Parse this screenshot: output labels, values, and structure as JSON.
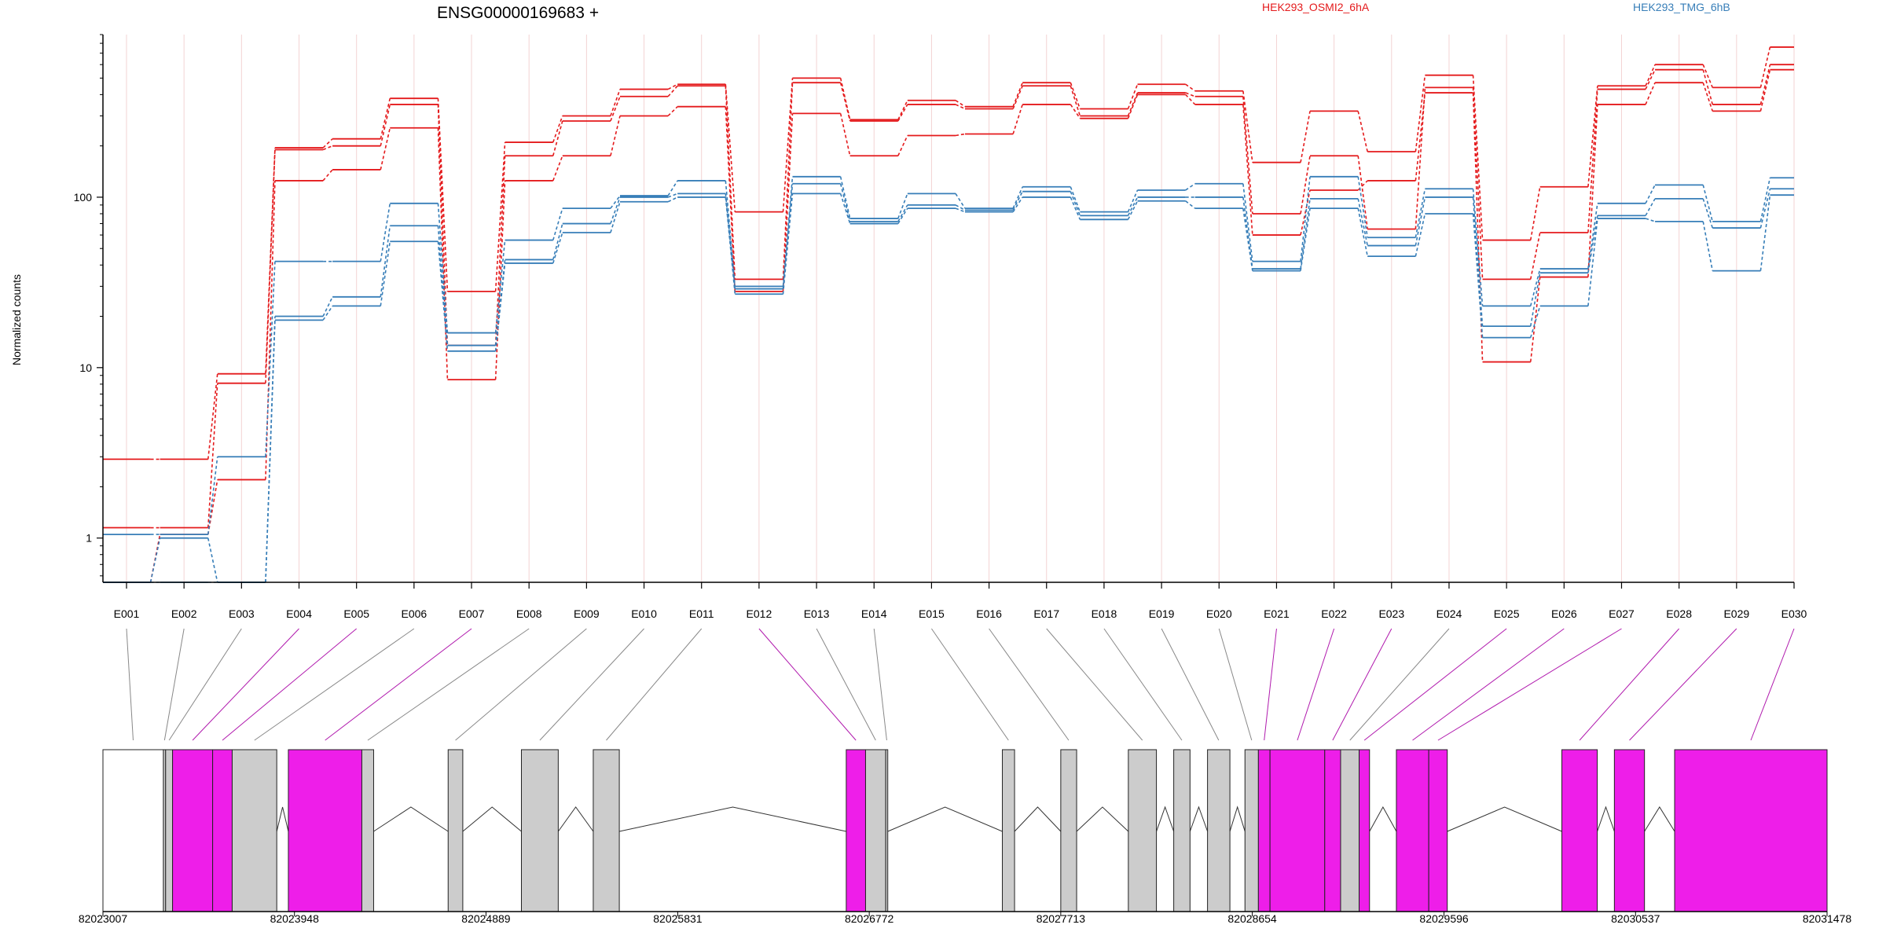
{
  "chart_data": {
    "type": "line",
    "title": "ENSG00000169683 +",
    "ylabel": "Normalized counts",
    "yscale": "log",
    "ylim": [
      0.55,
      900
    ],
    "yticks": [
      1,
      10,
      100
    ],
    "ytick_labels": [
      "1",
      "10",
      "100"
    ],
    "grid": "vertical, light red",
    "categories": [
      "E001",
      "E002",
      "E003",
      "E004",
      "E005",
      "E006",
      "E007",
      "E008",
      "E009",
      "E010",
      "E011",
      "E012",
      "E013",
      "E014",
      "E015",
      "E016",
      "E017",
      "E018",
      "E019",
      "E020",
      "E021",
      "E022",
      "E023",
      "E024",
      "E025",
      "E026",
      "E027",
      "E028",
      "E029",
      "E030"
    ],
    "legend": [
      {
        "label": "HEK293_OSMI2_6hA",
        "color": "#e41a1c",
        "position": "top-center"
      },
      {
        "label": "HEK293_TMG_6hB",
        "color": "#377eb8",
        "position": "top-right"
      }
    ],
    "series": [
      {
        "group": "HEK293_OSMI2_6hA",
        "color": "#e41a1c",
        "values": [
          2.9,
          2.9,
          9.2,
          195,
          220,
          380,
          28,
          210,
          300,
          430,
          460,
          82,
          500,
          285,
          370,
          340,
          470,
          330,
          460,
          420,
          160,
          320,
          185,
          520,
          56,
          115,
          450,
          600,
          440,
          760
        ]
      },
      {
        "group": "HEK293_OSMI2_6hA",
        "color": "#e41a1c",
        "values": [
          1.15,
          1.15,
          8.1,
          190,
          200,
          350,
          13.5,
          175,
          280,
          390,
          450,
          33,
          470,
          280,
          350,
          330,
          450,
          300,
          410,
          390,
          80,
          175,
          65,
          440,
          33,
          62,
          430,
          560,
          350,
          600
        ]
      },
      {
        "group": "HEK293_OSMI2_6hA",
        "color": "#e41a1c",
        "values": [
          0.55,
          1.05,
          2.2,
          125,
          145,
          255,
          8.5,
          125,
          175,
          300,
          340,
          28,
          310,
          175,
          230,
          235,
          350,
          290,
          400,
          350,
          60,
          110,
          125,
          410,
          10.8,
          34,
          350,
          470,
          320,
          560
        ]
      },
      {
        "group": "HEK293_TMG_6hB",
        "color": "#377eb8",
        "values": [
          1.05,
          1.05,
          3.0,
          42,
          42,
          92,
          16,
          56,
          86,
          102,
          125,
          30,
          132,
          75,
          105,
          86,
          115,
          82,
          110,
          120,
          42,
          132,
          58,
          112,
          23,
          38,
          92,
          118,
          72,
          130
        ]
      },
      {
        "group": "HEK293_TMG_6hB",
        "color": "#377eb8",
        "values": [
          0.55,
          1.0,
          0.55,
          20,
          26,
          68,
          13.5,
          43,
          70,
          100,
          105,
          29,
          120,
          72,
          90,
          84,
          108,
          78,
          100,
          100,
          38,
          98,
          52,
          100,
          17.5,
          36,
          78,
          98,
          66,
          112
        ]
      },
      {
        "group": "HEK293_TMG_6hB",
        "color": "#377eb8",
        "values": [
          0.55,
          0.55,
          0.55,
          19,
          23,
          55,
          12.5,
          41,
          62,
          94,
          100,
          27,
          105,
          70,
          86,
          82,
          100,
          74,
          95,
          86,
          37,
          86,
          45,
          80,
          15,
          23,
          75,
          72,
          37,
          103
        ]
      }
    ],
    "gene_model": {
      "genomic_ticks": [
        "82023007",
        "82023948",
        "82024889",
        "82025831",
        "82026772",
        "82027713",
        "82028654",
        "82029596",
        "82030537",
        "82031478"
      ],
      "range": [
        82023007,
        82031478
      ],
      "exon_highlight_color": "#ee1ee9",
      "exon_normal_color": "#cccccc",
      "exons": [
        {
          "id": "E001",
          "start": 82023007,
          "end": 82023304,
          "fill": "white",
          "significant": false
        },
        {
          "id": "E002",
          "start": 82023304,
          "end": 82023315,
          "fill": "gray",
          "significant": false
        },
        {
          "id": "E003",
          "start": 82023315,
          "end": 82023349,
          "fill": "gray",
          "significant": false
        },
        {
          "id": "E004",
          "start": 82023349,
          "end": 82023546,
          "fill": "magenta",
          "significant": true
        },
        {
          "id": "E005",
          "start": 82023546,
          "end": 82023642,
          "fill": "magenta",
          "significant": true
        },
        {
          "id": "E006",
          "start": 82023642,
          "end": 82023861,
          "fill": "gray",
          "significant": false
        },
        {
          "id": "E007",
          "start": 82023918,
          "end": 82024279,
          "fill": "magenta",
          "significant": true
        },
        {
          "id": "E008",
          "start": 82024279,
          "end": 82024337,
          "fill": "gray",
          "significant": false
        },
        {
          "id": "E009",
          "start": 82024703,
          "end": 82024775,
          "fill": "gray",
          "significant": false
        },
        {
          "id": "E010",
          "start": 82025063,
          "end": 82025244,
          "fill": "gray",
          "significant": false
        },
        {
          "id": "E011",
          "start": 82025416,
          "end": 82025544,
          "fill": "gray",
          "significant": false
        },
        {
          "id": "E012",
          "start": 82026659,
          "end": 82026754,
          "fill": "magenta",
          "significant": true
        },
        {
          "id": "E013",
          "start": 82026754,
          "end": 82026853,
          "fill": "gray",
          "significant": false
        },
        {
          "id": "E014",
          "start": 82026853,
          "end": 82026863,
          "fill": "gray",
          "significant": false
        },
        {
          "id": "E015",
          "start": 82027426,
          "end": 82027486,
          "fill": "gray",
          "significant": false
        },
        {
          "id": "E016",
          "start": 82027713,
          "end": 82027791,
          "fill": "gray",
          "significant": false
        },
        {
          "id": "E017",
          "start": 82028045,
          "end": 82028183,
          "fill": "gray",
          "significant": false
        },
        {
          "id": "E018",
          "start": 82028268,
          "end": 82028348,
          "fill": "gray",
          "significant": false
        },
        {
          "id": "E019",
          "start": 82028434,
          "end": 82028544,
          "fill": "gray",
          "significant": false
        },
        {
          "id": "E020",
          "start": 82028618,
          "end": 82028684,
          "fill": "gray",
          "significant": false
        },
        {
          "id": "E021",
          "start": 82028684,
          "end": 82028741,
          "fill": "magenta",
          "significant": true
        },
        {
          "id": "E022",
          "start": 82028741,
          "end": 82029010,
          "fill": "magenta",
          "significant": true
        },
        {
          "id": "E023",
          "start": 82029010,
          "end": 82029088,
          "fill": "magenta",
          "significant": true
        },
        {
          "id": "E024",
          "start": 82029088,
          "end": 82029179,
          "fill": "gray",
          "significant": false
        },
        {
          "id": "E025",
          "start": 82029179,
          "end": 82029230,
          "fill": "magenta",
          "significant": true
        },
        {
          "id": "E026",
          "start": 82029362,
          "end": 82029521,
          "fill": "magenta",
          "significant": true
        },
        {
          "id": "E027",
          "start": 82029521,
          "end": 82029612,
          "fill": "magenta",
          "significant": true
        },
        {
          "id": "E028",
          "start": 82030175,
          "end": 82030349,
          "fill": "magenta",
          "significant": true
        },
        {
          "id": "E029",
          "start": 82030433,
          "end": 82030581,
          "fill": "magenta",
          "significant": true
        },
        {
          "id": "E030",
          "start": 82030729,
          "end": 82031478,
          "fill": "magenta",
          "significant": true
        }
      ]
    }
  }
}
